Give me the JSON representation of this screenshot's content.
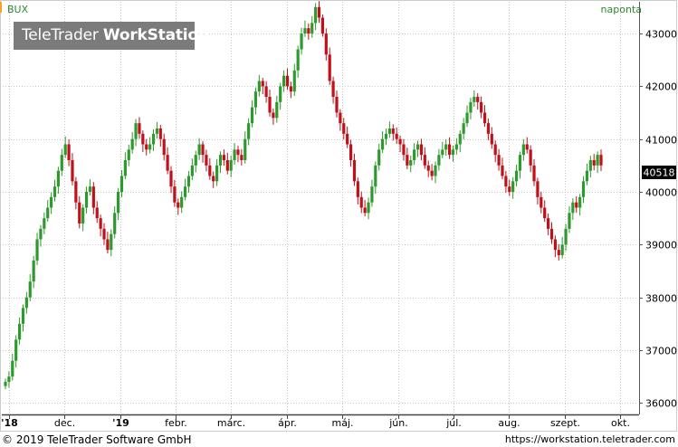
{
  "header": {
    "ticker": "BUX",
    "period": "naponta"
  },
  "logo": {
    "brand": "TeleTrader",
    "product": "WorkStation"
  },
  "footer": {
    "copyright": "© 2019 TeleTrader Software GmbH",
    "url": "https://workstation.teletrader.com"
  },
  "colors": {
    "up": "#2e9a2e",
    "down": "#c0101a",
    "grid": "#c8c8c8",
    "accent": "#f5a623"
  },
  "chart_data": {
    "type": "candlestick",
    "ylim": [
      35800,
      43600
    ],
    "yticks": [
      36000,
      37000,
      38000,
      39000,
      40000,
      41000,
      42000,
      43000
    ],
    "last_value": "40518",
    "x_labels": [
      "'18",
      "dec.",
      "'19",
      "febr.",
      "márc.",
      "ápr.",
      "máj.",
      "jún.",
      "júl.",
      "aug.",
      "szept.",
      "okt."
    ],
    "grid": true,
    "series": [
      {
        "name": "BUX",
        "values": [
          36400,
          36500,
          36800,
          37200,
          37500,
          37800,
          38000,
          38300,
          38700,
          39100,
          39300,
          39500,
          39700,
          39900,
          40100,
          40400,
          40700,
          40900,
          40600,
          40200,
          39800,
          39400,
          39700,
          40000,
          40100,
          39700,
          39500,
          39300,
          39100,
          38900,
          39200,
          39600,
          40000,
          40300,
          40600,
          40800,
          41000,
          41300,
          41100,
          40900,
          40800,
          40900,
          41100,
          41200,
          41000,
          40700,
          40400,
          40100,
          39800,
          39700,
          39900,
          40100,
          40300,
          40500,
          40700,
          40900,
          40700,
          40500,
          40300,
          40200,
          40500,
          40700,
          40600,
          40400,
          40600,
          40800,
          40700,
          40600,
          41000,
          41300,
          41600,
          41900,
          42100,
          42000,
          41800,
          41500,
          41400,
          41700,
          42000,
          42200,
          42000,
          41900,
          42300,
          42700,
          43000,
          43100,
          43000,
          43200,
          43500,
          43300,
          43000,
          42600,
          42100,
          41800,
          41500,
          41300,
          41100,
          40900,
          40600,
          40200,
          39900,
          39700,
          39600,
          39800,
          40100,
          40500,
          40800,
          41000,
          41100,
          41200,
          41100,
          41000,
          40900,
          40700,
          40500,
          40600,
          40800,
          40900,
          40700,
          40500,
          40400,
          40300,
          40500,
          40700,
          40800,
          40900,
          40700,
          40800,
          40900,
          41100,
          41300,
          41500,
          41700,
          41800,
          41700,
          41500,
          41300,
          41100,
          40900,
          40700,
          40500,
          40300,
          40100,
          40000,
          40200,
          40400,
          40700,
          40900,
          40800,
          40500,
          40200,
          39900,
          39700,
          39500,
          39300,
          39100,
          38900,
          38800,
          39000,
          39300,
          39600,
          39800,
          39700,
          39900,
          40200,
          40400,
          40600,
          40500,
          40700,
          40500
        ]
      }
    ]
  }
}
